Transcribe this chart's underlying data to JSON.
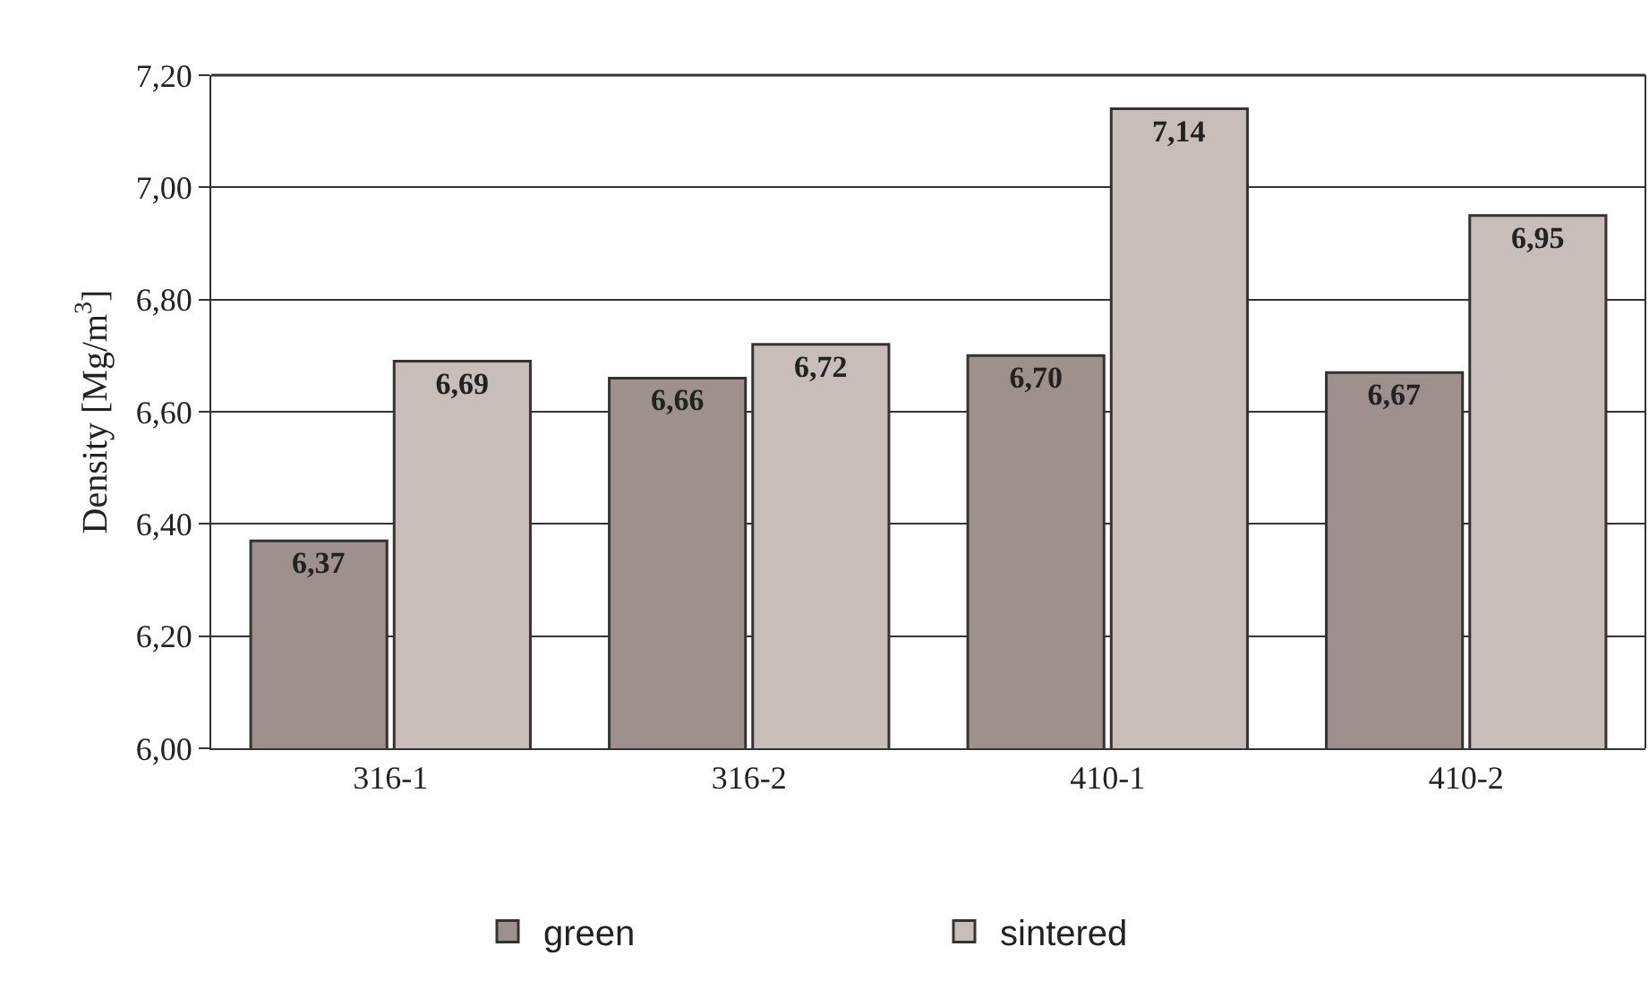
{
  "chart_data": {
    "type": "bar",
    "ylabel": "Density [Mg/m$^{3}$]",
    "categories": [
      "316-1",
      "316-2",
      "410-1",
      "410-2"
    ],
    "series": [
      {
        "name": "green",
        "color": "#9e918d",
        "values": [
          6.37,
          6.66,
          6.7,
          6.67
        ],
        "value_labels": [
          "6,37",
          "6,66",
          "6,70",
          "6,67"
        ]
      },
      {
        "name": "sintered",
        "color": "#c9bdb9",
        "values": [
          6.69,
          6.72,
          7.14,
          6.95
        ],
        "value_labels": [
          "6,69",
          "6,72",
          "7,14",
          "6,95"
        ]
      }
    ],
    "ylim": [
      6.0,
      7.2
    ],
    "yticks": [
      {
        "value": 6.0,
        "label": "6,00"
      },
      {
        "value": 6.2,
        "label": "6,20"
      },
      {
        "value": 6.4,
        "label": "6,40"
      },
      {
        "value": 6.6,
        "label": "6,60"
      },
      {
        "value": 6.8,
        "label": "6,80"
      },
      {
        "value": 7.0,
        "label": "7,00"
      },
      {
        "value": 7.2,
        "label": "7,20"
      }
    ],
    "grid": "y",
    "legend": "bottom"
  }
}
